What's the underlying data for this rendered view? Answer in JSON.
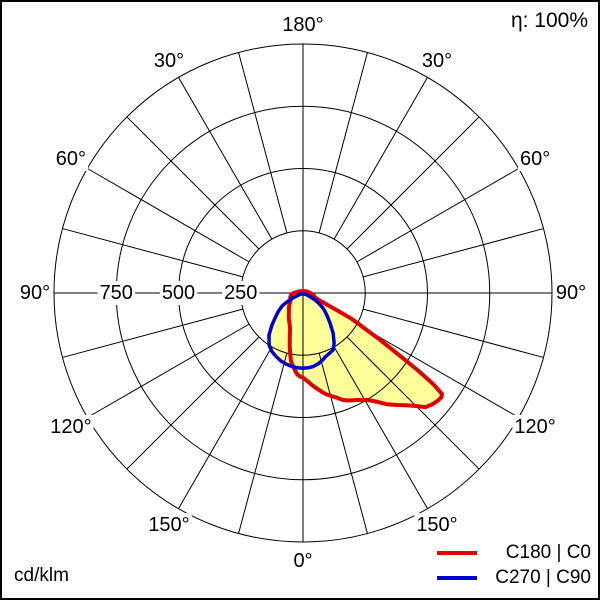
{
  "header": {
    "efficiency": "η: 100%"
  },
  "footer": {
    "unit": "cd/klm"
  },
  "legend": [
    {
      "label": "C180 | C0",
      "color": "#e00000"
    },
    {
      "label": "C270 | C90",
      "color": "#0000cd"
    }
  ],
  "chart_data": {
    "type": "polar-photometric",
    "unit": "cd/klm",
    "efficiency": "η: 100%",
    "rmax": 1000,
    "grid_step_deg": 15,
    "fill_color": "#ffff99",
    "grid_color": "#000000",
    "radial_ticks": [
      {
        "value": 250,
        "label": "250"
      },
      {
        "value": 500,
        "label": "500"
      },
      {
        "value": 750,
        "label": "750"
      }
    ],
    "angle_ticks": [
      {
        "deg": 0,
        "label": "0°"
      },
      {
        "deg": 30,
        "label": "30°"
      },
      {
        "deg": 60,
        "label": "60°"
      },
      {
        "deg": 90,
        "label": "90°"
      },
      {
        "deg": 120,
        "label": "120°"
      },
      {
        "deg": 150,
        "label": "150°"
      },
      {
        "deg": 180,
        "label": "180°"
      },
      {
        "deg": -30,
        "label": "30°"
      },
      {
        "deg": -60,
        "label": "60°"
      },
      {
        "deg": -90,
        "label": "90°"
      },
      {
        "deg": -120,
        "label": "120°"
      },
      {
        "deg": -150,
        "label": "150°"
      }
    ],
    "series": [
      {
        "name": "C180 | C0",
        "color": "#e00000",
        "width": 4,
        "closed": true,
        "points": [
          [
            -100,
            22
          ],
          [
            -95,
            30
          ],
          [
            -90,
            38
          ],
          [
            -82,
            48
          ],
          [
            -72,
            54
          ],
          [
            -62,
            56
          ],
          [
            -52,
            68
          ],
          [
            -45,
            80
          ],
          [
            -40,
            88
          ],
          [
            -34,
            102
          ],
          [
            -29,
            118
          ],
          [
            -24,
            133
          ],
          [
            -20,
            152
          ],
          [
            -17,
            182
          ],
          [
            -14,
            220
          ],
          [
            -12,
            248
          ],
          [
            -10,
            278
          ],
          [
            -8,
            295
          ],
          [
            -6,
            312
          ],
          [
            -4,
            328
          ],
          [
            -2,
            336
          ],
          [
            0,
            340
          ],
          [
            3,
            355
          ],
          [
            5,
            368
          ],
          [
            7,
            380
          ],
          [
            9,
            392
          ],
          [
            11,
            406
          ],
          [
            13,
            418
          ],
          [
            16,
            432
          ],
          [
            18,
            442
          ],
          [
            20,
            456
          ],
          [
            22,
            465
          ],
          [
            25,
            476
          ],
          [
            27,
            482
          ],
          [
            29,
            492
          ],
          [
            31,
            501
          ],
          [
            34,
            526
          ],
          [
            37,
            559
          ],
          [
            40,
            587
          ],
          [
            43,
            617
          ],
          [
            45,
            642
          ],
          [
            47,
            672
          ],
          [
            49,
            684
          ],
          [
            51,
            692
          ],
          [
            53,
            696
          ],
          [
            54,
            690
          ],
          [
            55,
            640
          ],
          [
            56,
            560
          ],
          [
            57,
            470
          ],
          [
            58,
            400
          ],
          [
            59,
            345
          ],
          [
            60,
            290
          ],
          [
            61,
            255
          ],
          [
            62,
            220
          ],
          [
            63,
            160
          ],
          [
            64,
            110
          ],
          [
            65,
            85
          ],
          [
            66,
            70
          ],
          [
            68,
            58
          ],
          [
            71,
            50
          ],
          [
            75,
            46
          ],
          [
            80,
            42
          ],
          [
            85,
            36
          ],
          [
            90,
            30
          ],
          [
            95,
            25
          ],
          [
            103,
            20
          ],
          [
            115,
            16
          ],
          [
            135,
            11
          ],
          [
            160,
            8
          ],
          [
            180,
            7
          ],
          [
            -160,
            8
          ],
          [
            -135,
            11
          ],
          [
            -115,
            16
          ]
        ]
      },
      {
        "name": "C270 | C90",
        "color": "#0000cd",
        "width": 3.5,
        "closed": true,
        "points": [
          [
            -68,
            10
          ],
          [
            -64,
            45
          ],
          [
            -61,
            75
          ],
          [
            -58,
            100
          ],
          [
            -53,
            125
          ],
          [
            -48,
            152
          ],
          [
            -44,
            180
          ],
          [
            -39,
            217
          ],
          [
            -33,
            250
          ],
          [
            -28,
            266
          ],
          [
            -23,
            277
          ],
          [
            -18,
            287
          ],
          [
            -13,
            294
          ],
          [
            -8,
            299
          ],
          [
            -4,
            301
          ],
          [
            0,
            302
          ],
          [
            4,
            301
          ],
          [
            8,
            298
          ],
          [
            12,
            291
          ],
          [
            16,
            281
          ],
          [
            20,
            270
          ],
          [
            24,
            264
          ],
          [
            28,
            258
          ],
          [
            32,
            236
          ],
          [
            37,
            201
          ],
          [
            42,
            162
          ],
          [
            47,
            131
          ],
          [
            51,
            110
          ],
          [
            54,
            95
          ],
          [
            57,
            75
          ],
          [
            60,
            56
          ],
          [
            62,
            35
          ],
          [
            65,
            12
          ]
        ]
      }
    ]
  }
}
